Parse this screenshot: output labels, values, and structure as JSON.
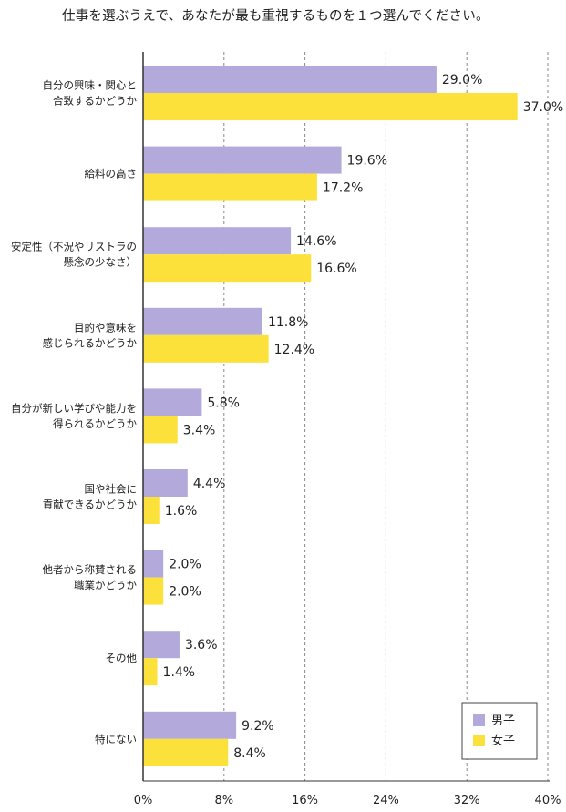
{
  "title": "仕事を選ぶうえで、あなたが最も重視するものを１つ選んでください。",
  "colors": {
    "male": "#b3aadb",
    "female": "#fce13b",
    "grid": "#888888",
    "axis": "#333333"
  },
  "chart_data": {
    "type": "bar",
    "orientation": "horizontal",
    "categories": [
      [
        "自分の興味・関心と",
        "合致するかどうか"
      ],
      [
        "給料の高さ"
      ],
      [
        "安定性（不況やリストラの",
        "懸念の少なさ）"
      ],
      [
        "目的や意味を",
        "感じられるかどうか"
      ],
      [
        "自分が新しい学びや能力を",
        "得られるかどうか"
      ],
      [
        "国や社会に",
        "貢献できるかどうか"
      ],
      [
        "他者から称賛される",
        "職業かどうか"
      ],
      [
        "その他"
      ],
      [
        "特にない"
      ]
    ],
    "series": [
      {
        "name": "男子",
        "values": [
          29.0,
          19.6,
          14.6,
          11.8,
          5.8,
          4.4,
          2.0,
          3.6,
          9.2
        ],
        "labels": [
          "29.0%",
          "19.6%",
          "14.6%",
          "11.8%",
          "5.8%",
          "4.4%",
          "2.0%",
          "3.6%",
          "9.2%"
        ]
      },
      {
        "name": "女子",
        "values": [
          37.0,
          17.2,
          16.6,
          12.4,
          3.4,
          1.6,
          2.0,
          1.4,
          8.4
        ],
        "labels": [
          "37.0%",
          "17.2%",
          "16.6%",
          "12.4%",
          "3.4%",
          "1.6%",
          "2.0%",
          "1.4%",
          "8.4%"
        ]
      }
    ],
    "xlim": [
      0,
      40
    ],
    "ticks": [
      0,
      8,
      16,
      24,
      32,
      40
    ],
    "tick_labels": [
      "0%",
      "8%",
      "16%",
      "24%",
      "32%",
      "40%"
    ],
    "grid": true,
    "legend_position": "bottom-right"
  }
}
